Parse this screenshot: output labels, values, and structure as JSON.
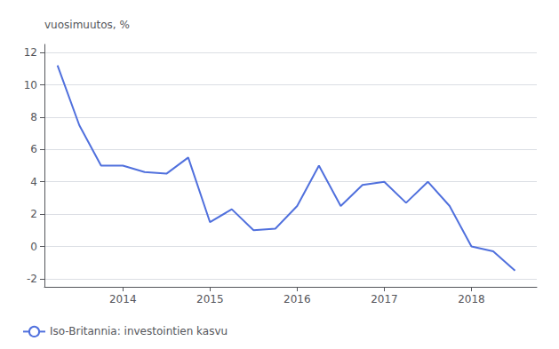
{
  "chart_data": {
    "type": "line",
    "y_label": "vuosimuutos, %",
    "x": [
      2013.25,
      2013.5,
      2013.75,
      2014.0,
      2014.25,
      2014.5,
      2014.75,
      2015.0,
      2015.25,
      2015.5,
      2015.75,
      2016.0,
      2016.25,
      2016.5,
      2016.75,
      2017.0,
      2017.25,
      2017.5,
      2017.75,
      2018.0,
      2018.25,
      2018.5
    ],
    "series": [
      {
        "name": "Iso-Britannia: investointien kasvu",
        "values": [
          11.2,
          7.5,
          5.0,
          5.0,
          4.6,
          4.5,
          5.5,
          1.5,
          2.3,
          1.0,
          1.1,
          2.5,
          5.0,
          2.5,
          3.8,
          4.0,
          2.7,
          4.0,
          2.5,
          0.0,
          -0.3,
          -1.5
        ]
      }
    ],
    "xlim": [
      2013.1,
      2018.75
    ],
    "xticks": [
      2014,
      2015,
      2016,
      2017,
      2018
    ],
    "ylim": [
      -2.5,
      12.5
    ],
    "yticks": [
      -2,
      0,
      2,
      4,
      6,
      8,
      10,
      12
    ],
    "grid": "y",
    "legend": "lower left"
  }
}
